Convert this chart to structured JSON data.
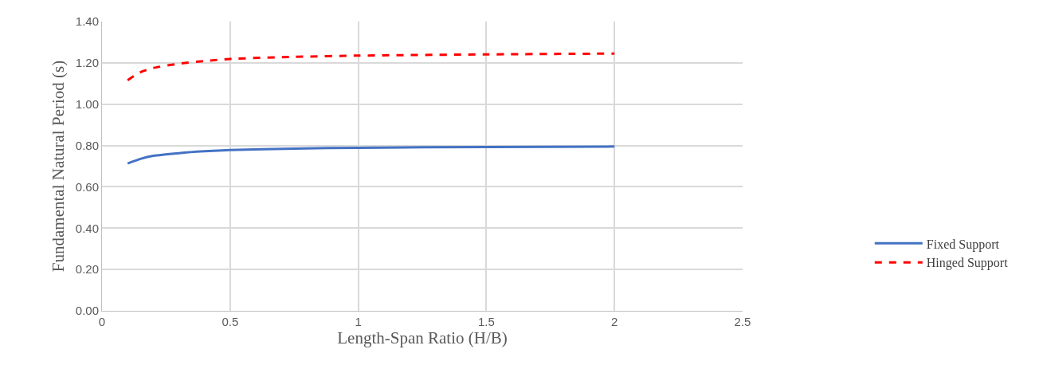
{
  "chart_data": {
    "type": "line",
    "xlabel": "Length-Span Ratio (H/B)",
    "ylabel": "Fundamental Natural Period (s)",
    "x": [
      0.1,
      0.15,
      0.2,
      0.3,
      0.4,
      0.5,
      0.75,
      1,
      1.5,
      2
    ],
    "series": [
      {
        "name": "Fixed Support",
        "color": "#4472c4",
        "line_style": "solid",
        "values": [
          0.713,
          0.735,
          0.75,
          0.763,
          0.772,
          0.778,
          0.785,
          0.789,
          0.793,
          0.795
        ]
      },
      {
        "name": "Hinged Support",
        "color": "#ff0000",
        "line_style": "dashed",
        "values": [
          1.116,
          1.155,
          1.175,
          1.196,
          1.209,
          1.219,
          1.229,
          1.235,
          1.241,
          1.245
        ]
      }
    ],
    "xlim": [
      0,
      2.5
    ],
    "xticks": [
      0,
      0.5,
      1,
      1.5,
      2,
      2.5
    ],
    "ylim": [
      0,
      1.4
    ],
    "yticks": [
      {
        "value": 0,
        "label": "0.00"
      },
      {
        "value": 0.2,
        "label": "0.20"
      },
      {
        "value": 0.4,
        "label": "0.40"
      },
      {
        "value": 0.6,
        "label": "0.60"
      },
      {
        "value": 0.8,
        "label": "0.80"
      },
      {
        "value": 1,
        "label": "1.00"
      },
      {
        "value": 1.2,
        "label": "1.20"
      },
      {
        "value": 1.4,
        "label": "1.40"
      }
    ],
    "grid": true,
    "legend": "bottom right",
    "marker": "none"
  }
}
